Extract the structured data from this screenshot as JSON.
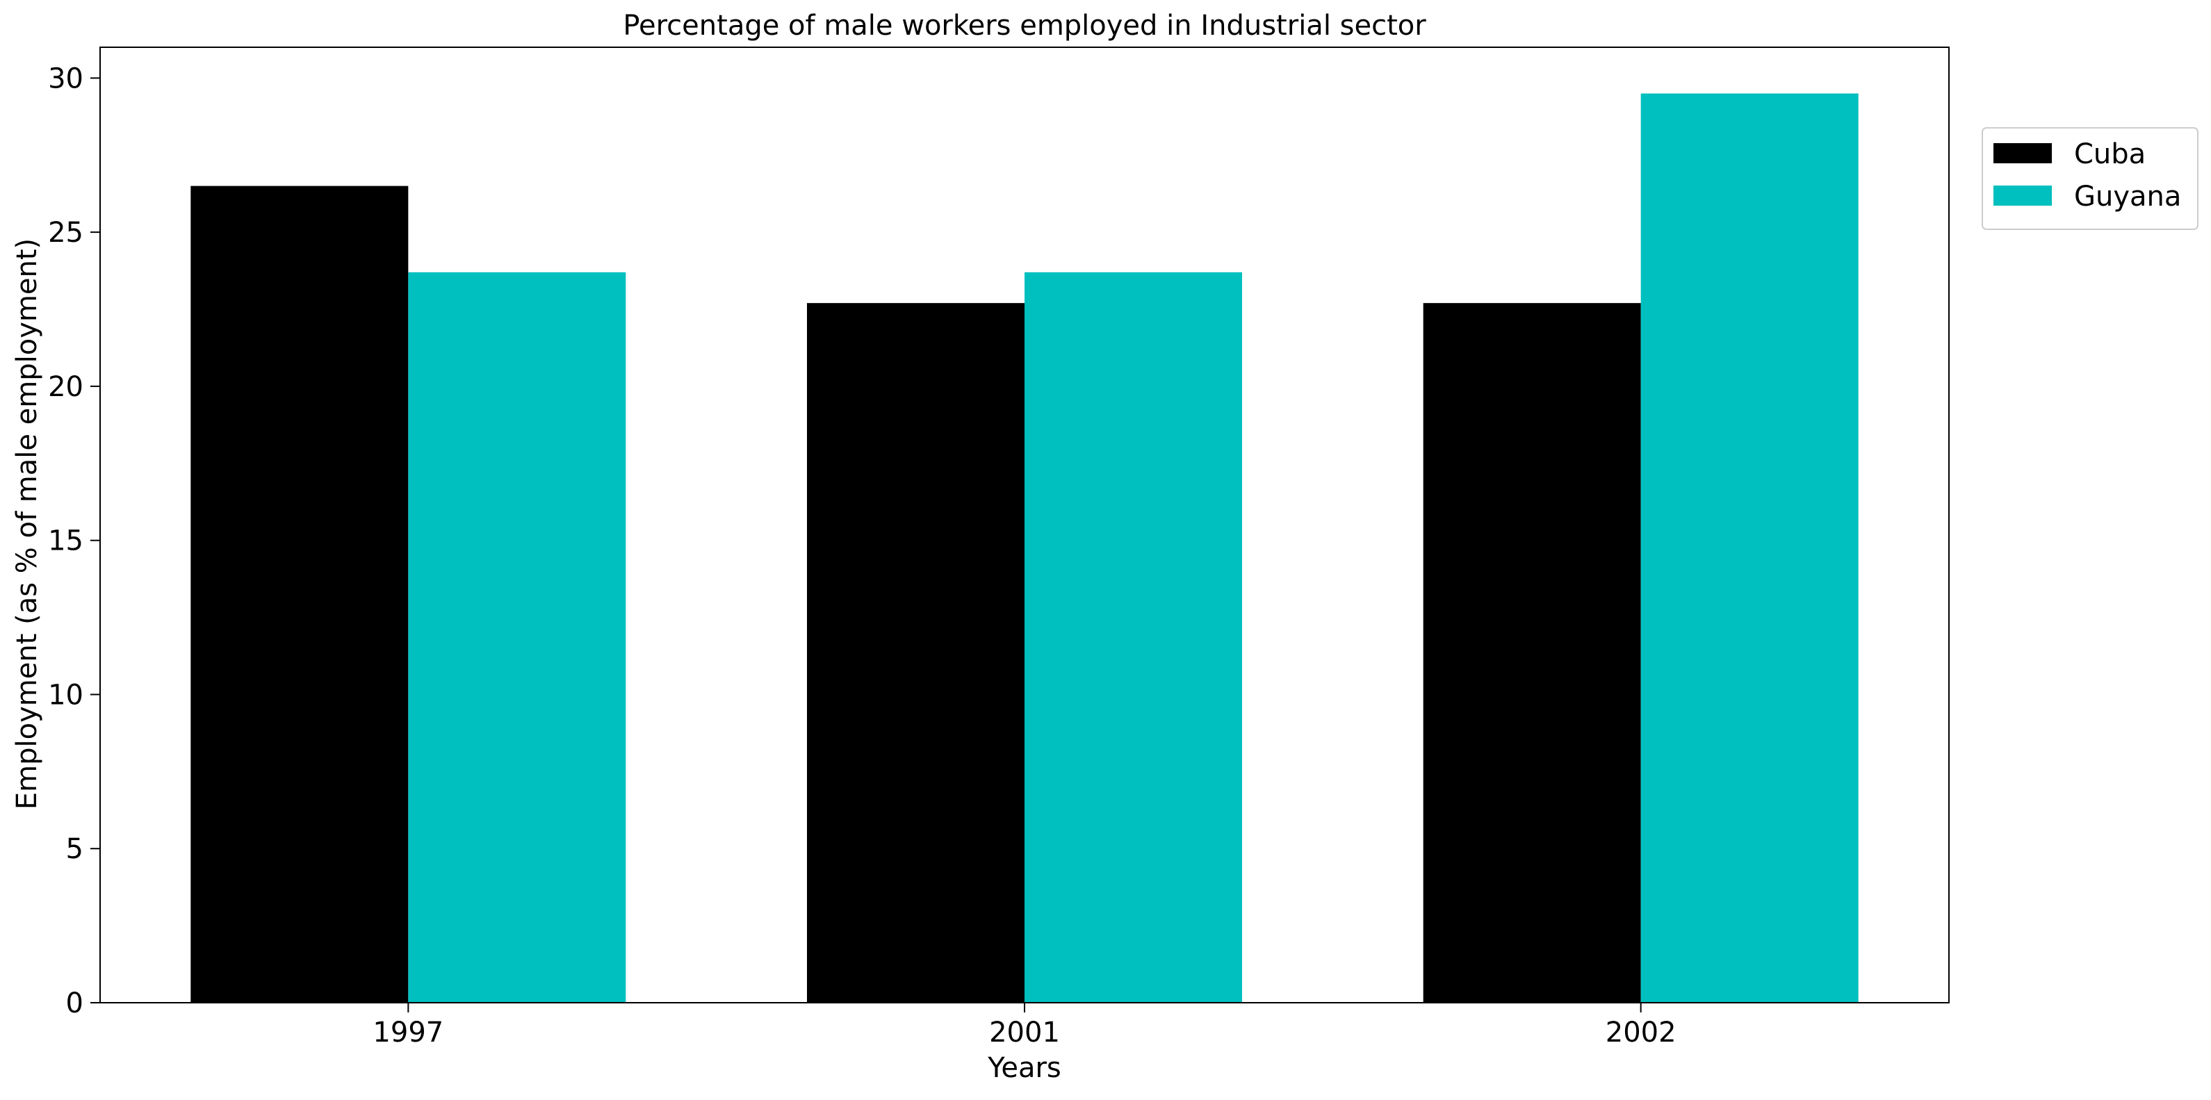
{
  "chart_data": {
    "type": "bar",
    "title": "Percentage of male workers employed in Industrial sector",
    "xlabel": "Years",
    "ylabel": "Employment (as % of male employment)",
    "categories": [
      "1997",
      "2001",
      "2002"
    ],
    "series": [
      {
        "name": "Cuba",
        "values": [
          26.5,
          22.7,
          22.7
        ],
        "color": "#000000"
      },
      {
        "name": "Guyana",
        "values": [
          23.7,
          23.7,
          29.5
        ],
        "color": "#00bfbf"
      }
    ],
    "ylim": [
      0,
      31
    ],
    "yticks": [
      0,
      5,
      10,
      15,
      20,
      25,
      30
    ],
    "grid": false,
    "legend_position": "top-right, outside the plot area"
  }
}
